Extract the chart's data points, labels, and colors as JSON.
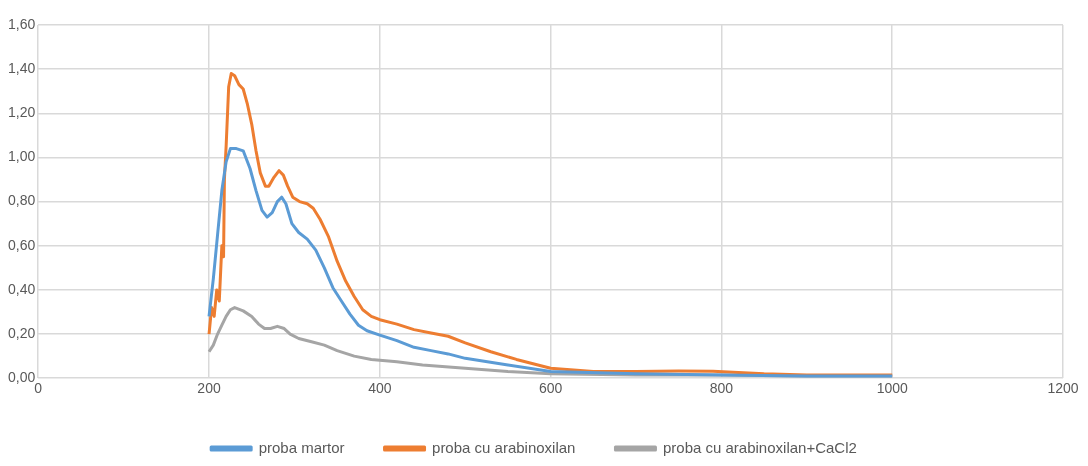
{
  "chart_data": {
    "type": "line",
    "xlim": [
      0,
      1200
    ],
    "xticks": [
      0,
      200,
      400,
      600,
      800,
      1000,
      1200
    ],
    "ylim": [
      0,
      1.6
    ],
    "yticks": [
      {
        "value": 0,
        "label": "0,00"
      },
      {
        "value": 0.2,
        "label": "0,20"
      },
      {
        "value": 0.4,
        "label": "0,40"
      },
      {
        "value": 0.6,
        "label": "0,60"
      },
      {
        "value": 0.8,
        "label": "0,80"
      },
      {
        "value": 1.0,
        "label": "1,00"
      },
      {
        "value": 1.2,
        "label": "1,20"
      },
      {
        "value": 1.4,
        "label": "1,40"
      },
      {
        "value": 1.6,
        "label": "1,60"
      }
    ],
    "grid": true,
    "legend": "bottom",
    "marker": "none",
    "line_style": "solid",
    "series": [
      {
        "name": "proba martor",
        "color": "#5b9bd5",
        "x": [
          200,
          205,
          210,
          215,
          220,
          225,
          232,
          240,
          248,
          255,
          262,
          268,
          274,
          280,
          285,
          290,
          297,
          305,
          315,
          325,
          335,
          345,
          355,
          365,
          375,
          385,
          400,
          420,
          440,
          460,
          480,
          500,
          550,
          600,
          700,
          800,
          900,
          1000
        ],
        "values": [
          0.28,
          0.45,
          0.65,
          0.85,
          0.98,
          1.04,
          1.04,
          1.03,
          0.95,
          0.85,
          0.76,
          0.73,
          0.75,
          0.8,
          0.82,
          0.79,
          0.7,
          0.66,
          0.63,
          0.58,
          0.5,
          0.41,
          0.35,
          0.29,
          0.24,
          0.215,
          0.195,
          0.17,
          0.14,
          0.125,
          0.11,
          0.09,
          0.06,
          0.03,
          0.02,
          0.015,
          0.01,
          0.01
        ]
      },
      {
        "name": "proba cu arabinoxilan",
        "color": "#ed7d31",
        "x": [
          200,
          203,
          206,
          209,
          212,
          215,
          217,
          218,
          220,
          223,
          226,
          230,
          235,
          240,
          245,
          250,
          255,
          260,
          266,
          270,
          276,
          282,
          287,
          292,
          298,
          306,
          315,
          322,
          330,
          340,
          350,
          360,
          370,
          380,
          390,
          400,
          420,
          440,
          460,
          480,
          500,
          530,
          560,
          600,
          650,
          700,
          750,
          790,
          850,
          900,
          1000
        ],
        "values": [
          0.2,
          0.32,
          0.28,
          0.4,
          0.35,
          0.6,
          0.55,
          0.9,
          1.05,
          1.32,
          1.38,
          1.37,
          1.33,
          1.31,
          1.24,
          1.15,
          1.03,
          0.93,
          0.87,
          0.87,
          0.91,
          0.94,
          0.92,
          0.87,
          0.82,
          0.8,
          0.79,
          0.77,
          0.72,
          0.64,
          0.53,
          0.44,
          0.37,
          0.31,
          0.28,
          0.265,
          0.245,
          0.22,
          0.205,
          0.19,
          0.16,
          0.12,
          0.085,
          0.045,
          0.03,
          0.03,
          0.033,
          0.032,
          0.02,
          0.015,
          0.015
        ]
      },
      {
        "name": "proba cu arabinoxilan+CaCl2",
        "color": "#a5a5a5",
        "x": [
          200,
          205,
          210,
          215,
          220,
          225,
          230,
          240,
          250,
          258,
          265,
          272,
          280,
          288,
          295,
          305,
          320,
          335,
          350,
          370,
          390,
          420,
          450,
          500,
          550,
          600,
          700,
          800,
          900,
          1000
        ],
        "values": [
          0.12,
          0.15,
          0.2,
          0.24,
          0.28,
          0.31,
          0.32,
          0.305,
          0.28,
          0.245,
          0.225,
          0.225,
          0.235,
          0.225,
          0.2,
          0.18,
          0.165,
          0.15,
          0.125,
          0.1,
          0.085,
          0.075,
          0.06,
          0.045,
          0.03,
          0.02,
          0.015,
          0.015,
          0.01,
          0.01
        ]
      }
    ]
  }
}
